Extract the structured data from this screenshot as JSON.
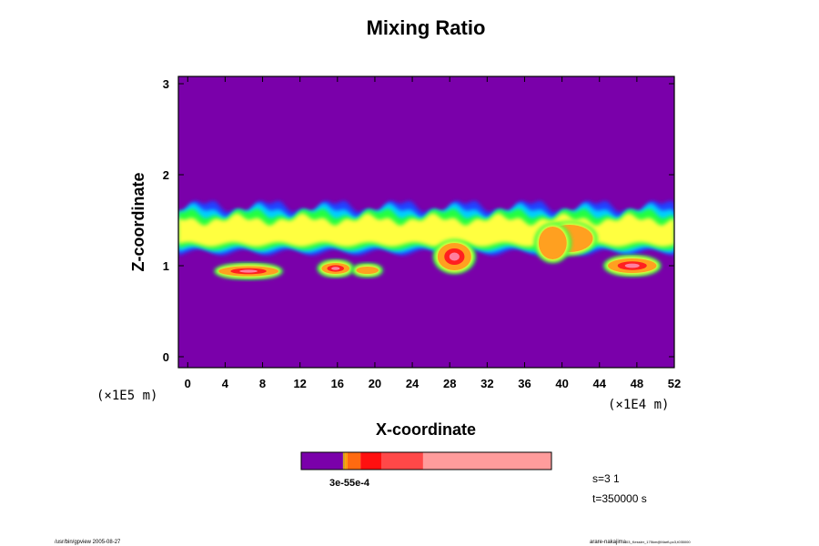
{
  "chart_data": {
    "type": "heatmap",
    "title": "Mixing Ratio",
    "xlabel": "X-coordinate",
    "ylabel": "Z-coordinate",
    "x_scale_label": "(×1E4 m)",
    "y_scale_label": "(×1E5 m)",
    "xlim": [
      -1,
      52
    ],
    "ylim": [
      -0.12,
      3.08
    ],
    "x_ticks": [
      "0",
      "4",
      "8",
      "12",
      "16",
      "20",
      "24",
      "28",
      "32",
      "36",
      "40",
      "44",
      "48",
      "52"
    ],
    "y_ticks": [
      "0",
      "1",
      "2",
      "3"
    ],
    "colorbar": {
      "label_text": "3e-55e-4",
      "segments": [
        {
          "color": "#7a00aa",
          "frac": 0.167
        },
        {
          "color": "#d4a020",
          "frac": 0.008
        },
        {
          "color": "#ff9900",
          "frac": 0.01
        },
        {
          "color": "#ff6a10",
          "frac": 0.052
        },
        {
          "color": "#ff1010",
          "frac": 0.083
        },
        {
          "color": "#ff4848",
          "frac": 0.167
        },
        {
          "color": "#ff9c9c",
          "frac": 0.513
        }
      ]
    },
    "field_colors": {
      "background": "#7a00aa",
      "blue": "#2040ff",
      "cyan": "#00d0ff",
      "green": "#20ff40",
      "yellow": "#ffff40",
      "orange": "#ffa020",
      "red": "#ff2020",
      "pink": "#ff80a0"
    },
    "bands": [
      {
        "z_low": 1.15,
        "z_high": 1.65,
        "x_from": -1,
        "x_to": 52
      }
    ],
    "blobs": [
      {
        "x": 6.5,
        "z": 0.94,
        "rx": 3.2,
        "rz": 0.055,
        "level": "red"
      },
      {
        "x": 15.8,
        "z": 0.97,
        "rx": 1.5,
        "rz": 0.06,
        "level": "red"
      },
      {
        "x": 19.2,
        "z": 0.95,
        "rx": 1.2,
        "rz": 0.04,
        "level": "orange"
      },
      {
        "x": 28.5,
        "z": 1.1,
        "rx": 1.8,
        "rz": 0.15,
        "level": "red"
      },
      {
        "x": 40.8,
        "z": 1.3,
        "rx": 2.5,
        "rz": 0.15,
        "level": "orange"
      },
      {
        "x": 47.5,
        "z": 1.0,
        "rx": 2.6,
        "rz": 0.08,
        "level": "red"
      },
      {
        "x": 39.0,
        "z": 1.25,
        "rx": 1.5,
        "rz": 0.18,
        "level": "orange"
      }
    ]
  },
  "info": {
    "s_label": "s=3 1",
    "t_label": "t=350000 s"
  },
  "footer": {
    "left": "/usr/bin/gpview 2005-08-27",
    "right_main": "arare-nakajima",
    "right_sub": "03_Kessler_175km@MarfLpc3,t035000"
  }
}
